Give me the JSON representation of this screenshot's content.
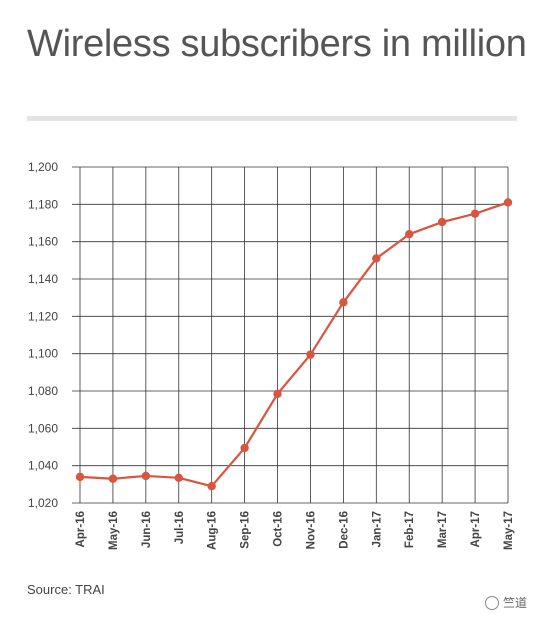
{
  "header": {
    "title": "Wireless subscribers in million"
  },
  "footer": {
    "source": "Source: TRAI",
    "watermark": "竺道"
  },
  "colors": {
    "line": "#d8553f",
    "grid": "#222222",
    "text": "#444444"
  },
  "chart_data": {
    "type": "line",
    "title": "Wireless subscribers in million",
    "categories": [
      "Apr-16",
      "May-16",
      "Jun-16",
      "Jul-16",
      "Aug-16",
      "Sep-16",
      "Oct-16",
      "Nov-16",
      "Dec-16",
      "Jan-17",
      "Feb-17",
      "Mar-17",
      "Apr-17",
      "May-17"
    ],
    "series": [
      {
        "values": [
          1034,
          1033,
          1034.5,
          1033.5,
          1029,
          1049.5,
          1078.5,
          1099.5,
          1127.5,
          1151,
          1164,
          1170.5,
          1175,
          1181
        ]
      }
    ],
    "ylim": [
      1020,
      1200
    ],
    "yticks": [
      1020,
      1040,
      1060,
      1080,
      1100,
      1120,
      1140,
      1160,
      1180,
      1200
    ],
    "ytick_labels": [
      "1,020",
      "1,040",
      "1,060",
      "1,080",
      "1,100",
      "1,120",
      "1,140",
      "1,160",
      "1,180",
      "1,200"
    ],
    "grid": true,
    "legend": "none"
  }
}
